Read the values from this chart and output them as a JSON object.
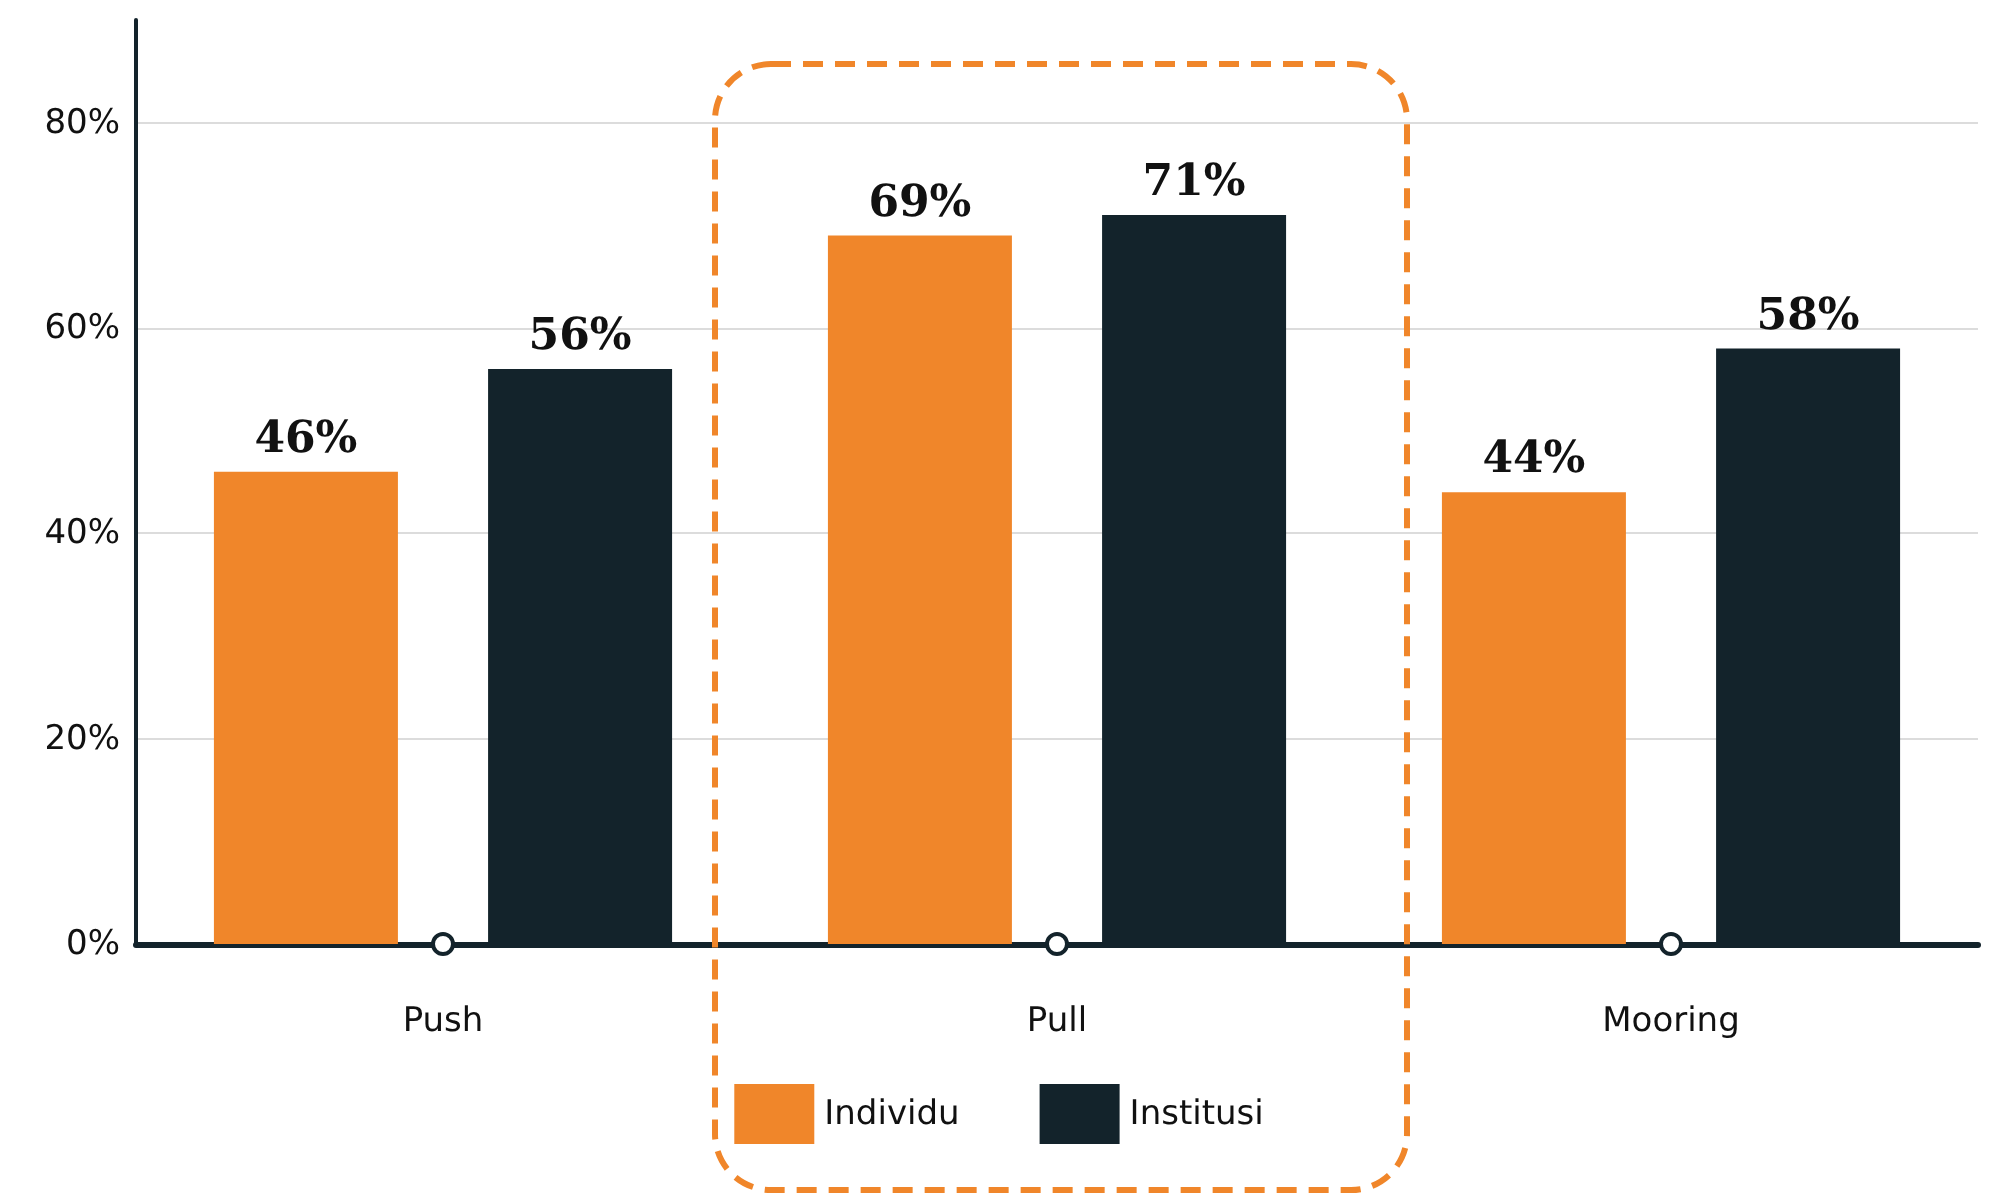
{
  "chart_data": {
    "type": "bar",
    "categories": [
      "Push",
      "Pull",
      "Mooring"
    ],
    "series": [
      {
        "name": "Individu",
        "color": "#f0862a",
        "values": [
          46,
          69,
          44
        ],
        "value_labels": [
          "46%",
          "69%",
          "44%"
        ]
      },
      {
        "name": "Institusi",
        "color": "#13232b",
        "values": [
          56,
          71,
          58
        ],
        "value_labels": [
          "56%",
          "71%",
          "58%"
        ]
      }
    ],
    "ylim": [
      0,
      90
    ],
    "yticks": [
      {
        "value": 0,
        "label": "0%"
      },
      {
        "value": 20,
        "label": "20%"
      },
      {
        "value": 40,
        "label": "40%"
      },
      {
        "value": 60,
        "label": "60%"
      },
      {
        "value": 80,
        "label": "80%"
      }
    ],
    "grid": "y",
    "legend": "bottom"
  }
}
